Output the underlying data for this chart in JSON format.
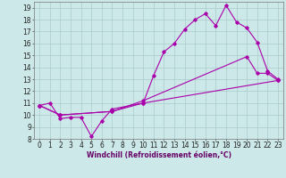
{
  "xlabel": "Windchill (Refroidissement éolien,°C)",
  "xlim": [
    -0.5,
    23.5
  ],
  "ylim": [
    8,
    19.5
  ],
  "xticks": [
    0,
    1,
    2,
    3,
    4,
    5,
    6,
    7,
    8,
    9,
    10,
    11,
    12,
    13,
    14,
    15,
    16,
    17,
    18,
    19,
    20,
    21,
    22,
    23
  ],
  "yticks": [
    8,
    9,
    10,
    11,
    12,
    13,
    14,
    15,
    16,
    17,
    18,
    19
  ],
  "bg_color": "#cce8e8",
  "grid_color": "#aacccc",
  "line_color": "#aa00aa",
  "line1_x": [
    0,
    1,
    2,
    3,
    4,
    5,
    6,
    7,
    10,
    11,
    12,
    13,
    14,
    15,
    16,
    17,
    18,
    19,
    20,
    21,
    22,
    23
  ],
  "line1_y": [
    10.8,
    11.0,
    9.7,
    9.8,
    9.8,
    8.2,
    9.5,
    10.5,
    11.0,
    13.3,
    15.3,
    16.0,
    17.2,
    18.0,
    18.5,
    17.5,
    19.2,
    17.8,
    17.3,
    16.1,
    13.7,
    13.0
  ],
  "line2_x": [
    0,
    2,
    7,
    10,
    23
  ],
  "line2_y": [
    10.8,
    10.0,
    10.3,
    11.0,
    12.9
  ],
  "line3_x": [
    0,
    2,
    7,
    10,
    20,
    21,
    22,
    23
  ],
  "line3_y": [
    10.8,
    10.0,
    10.3,
    11.2,
    14.9,
    13.5,
    13.5,
    12.9
  ],
  "xlabel_fontsize": 5.5,
  "tick_fontsize": 5.5,
  "linewidth": 0.8,
  "markersize": 1.8
}
